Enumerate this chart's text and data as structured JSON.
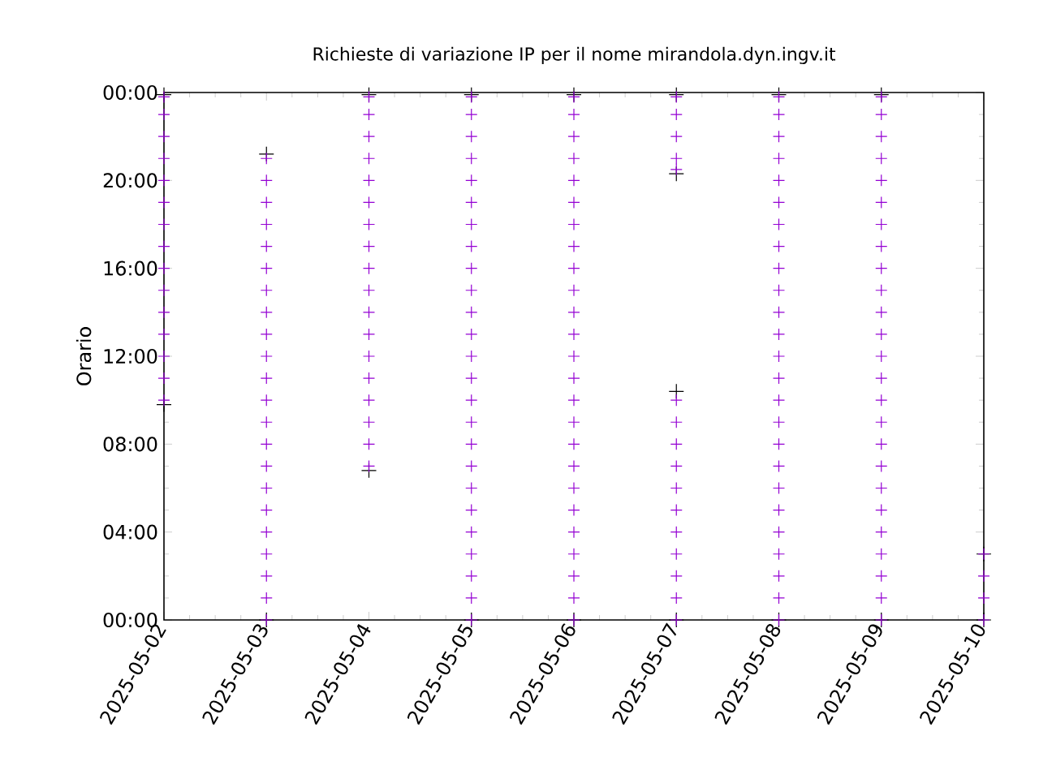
{
  "chart_data": {
    "type": "scatter",
    "title": "Richieste di variazione IP per il nome mirandola.dyn.ingv.it",
    "ylabel": "Orario",
    "marker": "cross",
    "xlim": [
      "2025-05-02",
      "2025-05-10"
    ],
    "xticks": [
      "2025-05-02",
      "2025-05-03",
      "2025-05-04",
      "2025-05-05",
      "2025-05-06",
      "2025-05-07",
      "2025-05-08",
      "2025-05-09",
      "2025-05-10"
    ],
    "ylim": [
      0,
      24
    ],
    "yticks": [
      {
        "value": 0,
        "label": "00:00"
      },
      {
        "value": 4,
        "label": "04:00"
      },
      {
        "value": 8,
        "label": "08:00"
      },
      {
        "value": 12,
        "label": "12:00"
      },
      {
        "value": 16,
        "label": "16:00"
      },
      {
        "value": 20,
        "label": "20:00"
      },
      {
        "value": 24,
        "label": "00:00"
      }
    ],
    "series": [
      {
        "color": "#000000",
        "x": [
          "2025-05-02",
          "2025-05-02",
          "2025-05-03",
          "2025-05-03",
          "2025-05-04",
          "2025-05-04",
          "2025-05-05",
          "2025-05-05",
          "2025-05-06",
          "2025-05-06",
          "2025-05-07",
          "2025-05-07",
          "2025-05-07",
          "2025-05-07",
          "2025-05-08",
          "2025-05-08",
          "2025-05-09",
          "2025-05-09",
          "2025-05-10",
          "2025-05-10"
        ],
        "values": [
          9.8,
          23.9,
          0,
          21.2,
          6.8,
          23.9,
          0,
          23.9,
          0,
          23.9,
          0,
          10.4,
          20.3,
          23.9,
          0,
          23.9,
          0,
          23.9,
          0,
          3
        ]
      },
      {
        "color": "#9400d3",
        "x": [
          "2025-05-02",
          "2025-05-02",
          "2025-05-02",
          "2025-05-02",
          "2025-05-02",
          "2025-05-02",
          "2025-05-02",
          "2025-05-02",
          "2025-05-02",
          "2025-05-02",
          "2025-05-02",
          "2025-05-02",
          "2025-05-02",
          "2025-05-02",
          "2025-05-02",
          "2025-05-03",
          "2025-05-03",
          "2025-05-03",
          "2025-05-03",
          "2025-05-03",
          "2025-05-03",
          "2025-05-03",
          "2025-05-03",
          "2025-05-03",
          "2025-05-03",
          "2025-05-03",
          "2025-05-03",
          "2025-05-03",
          "2025-05-03",
          "2025-05-03",
          "2025-05-03",
          "2025-05-03",
          "2025-05-03",
          "2025-05-03",
          "2025-05-03",
          "2025-05-03",
          "2025-05-03",
          "2025-05-04",
          "2025-05-04",
          "2025-05-04",
          "2025-05-04",
          "2025-05-04",
          "2025-05-04",
          "2025-05-04",
          "2025-05-04",
          "2025-05-04",
          "2025-05-04",
          "2025-05-04",
          "2025-05-04",
          "2025-05-04",
          "2025-05-04",
          "2025-05-04",
          "2025-05-04",
          "2025-05-04",
          "2025-05-04",
          "2025-05-05",
          "2025-05-05",
          "2025-05-05",
          "2025-05-05",
          "2025-05-05",
          "2025-05-05",
          "2025-05-05",
          "2025-05-05",
          "2025-05-05",
          "2025-05-05",
          "2025-05-05",
          "2025-05-05",
          "2025-05-05",
          "2025-05-05",
          "2025-05-05",
          "2025-05-05",
          "2025-05-05",
          "2025-05-05",
          "2025-05-05",
          "2025-05-05",
          "2025-05-05",
          "2025-05-05",
          "2025-05-05",
          "2025-05-05",
          "2025-05-05",
          "2025-05-06",
          "2025-05-06",
          "2025-05-06",
          "2025-05-06",
          "2025-05-06",
          "2025-05-06",
          "2025-05-06",
          "2025-05-06",
          "2025-05-06",
          "2025-05-06",
          "2025-05-06",
          "2025-05-06",
          "2025-05-06",
          "2025-05-06",
          "2025-05-06",
          "2025-05-06",
          "2025-05-06",
          "2025-05-06",
          "2025-05-06",
          "2025-05-06",
          "2025-05-06",
          "2025-05-06",
          "2025-05-06",
          "2025-05-06",
          "2025-05-06",
          "2025-05-07",
          "2025-05-07",
          "2025-05-07",
          "2025-05-07",
          "2025-05-07",
          "2025-05-07",
          "2025-05-07",
          "2025-05-07",
          "2025-05-07",
          "2025-05-07",
          "2025-05-07",
          "2025-05-07",
          "2025-05-07",
          "2025-05-07",
          "2025-05-07",
          "2025-05-07",
          "2025-05-08",
          "2025-05-08",
          "2025-05-08",
          "2025-05-08",
          "2025-05-08",
          "2025-05-08",
          "2025-05-08",
          "2025-05-08",
          "2025-05-08",
          "2025-05-08",
          "2025-05-08",
          "2025-05-08",
          "2025-05-08",
          "2025-05-08",
          "2025-05-08",
          "2025-05-08",
          "2025-05-08",
          "2025-05-08",
          "2025-05-08",
          "2025-05-08",
          "2025-05-08",
          "2025-05-08",
          "2025-05-08",
          "2025-05-08",
          "2025-05-08",
          "2025-05-09",
          "2025-05-09",
          "2025-05-09",
          "2025-05-09",
          "2025-05-09",
          "2025-05-09",
          "2025-05-09",
          "2025-05-09",
          "2025-05-09",
          "2025-05-09",
          "2025-05-09",
          "2025-05-09",
          "2025-05-09",
          "2025-05-09",
          "2025-05-09",
          "2025-05-09",
          "2025-05-09",
          "2025-05-09",
          "2025-05-09",
          "2025-05-09",
          "2025-05-09",
          "2025-05-09",
          "2025-05-09",
          "2025-05-09",
          "2025-05-09",
          "2025-05-10",
          "2025-05-10",
          "2025-05-10",
          "2025-05-10"
        ],
        "values": [
          10,
          11,
          12,
          13,
          14,
          15,
          16,
          17,
          18,
          19,
          20,
          21,
          22,
          23,
          23.8,
          0,
          1,
          2,
          3,
          4,
          5,
          6,
          7,
          8,
          9,
          10,
          11,
          12,
          13,
          14,
          15,
          16,
          17,
          18,
          19,
          20,
          21,
          7,
          8,
          9,
          10,
          11,
          12,
          13,
          14,
          15,
          16,
          17,
          18,
          19,
          20,
          21,
          22,
          23,
          23.8,
          0,
          1,
          2,
          3,
          4,
          5,
          6,
          7,
          8,
          9,
          10,
          11,
          12,
          13,
          14,
          15,
          16,
          17,
          18,
          19,
          20,
          21,
          22,
          23,
          23.8,
          0,
          1,
          2,
          3,
          4,
          5,
          6,
          7,
          8,
          9,
          10,
          11,
          12,
          13,
          14,
          15,
          16,
          17,
          18,
          19,
          20,
          21,
          22,
          23,
          23.8,
          0,
          1,
          2,
          3,
          4,
          5,
          6,
          7,
          8,
          9,
          10,
          20.5,
          21,
          22,
          23,
          23.8,
          0,
          1,
          2,
          3,
          4,
          5,
          6,
          7,
          8,
          9,
          10,
          11,
          12,
          13,
          14,
          15,
          16,
          17,
          18,
          19,
          20,
          21,
          22,
          23,
          23.8,
          0,
          1,
          2,
          3,
          4,
          5,
          6,
          7,
          8,
          9,
          10,
          11,
          12,
          13,
          14,
          15,
          16,
          17,
          18,
          19,
          20,
          21,
          22,
          23,
          23.8,
          0,
          1,
          2,
          3
        ]
      }
    ]
  }
}
